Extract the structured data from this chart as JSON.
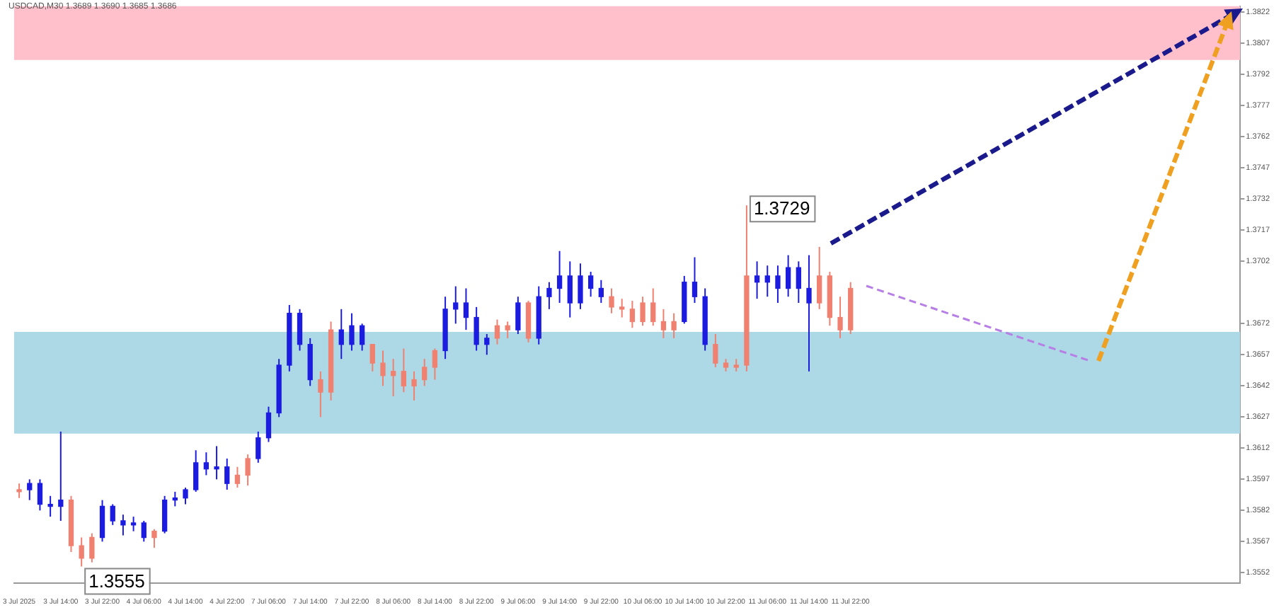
{
  "chart_data": {
    "type": "candlestick",
    "title": "USDCAD,M30  1.3689 1.3690 1.3685 1.3686",
    "categories": [
      "3 Jul 2025",
      null,
      null,
      null,
      "3 Jul 14:00",
      null,
      null,
      null,
      "3 Jul 22:00",
      null,
      null,
      null,
      "4 Jul 06:00",
      null,
      null,
      null,
      "4 Jul 14:00",
      null,
      null,
      null,
      "4 Jul 22:00",
      null,
      null,
      null,
      "7 Jul 06:00",
      null,
      null,
      null,
      "7 Jul 14:00",
      null,
      null,
      null,
      "7 Jul 22:00",
      null,
      null,
      null,
      "8 Jul 06:00",
      null,
      null,
      null,
      "8 Jul 14:00",
      null,
      null,
      null,
      "8 Jul 22:00",
      null,
      null,
      null,
      "9 Jul 06:00",
      null,
      null,
      null,
      "9 Jul 14:00",
      null,
      null,
      null,
      "9 Jul 22:00",
      null,
      null,
      null,
      "10 Jul 06:00",
      null,
      null,
      null,
      "10 Jul 14:00",
      null,
      null,
      null,
      "10 Jul 22:00",
      null,
      null,
      null,
      "11 Jul 06:00",
      null,
      null,
      null,
      "11 Jul 14:00",
      null,
      null,
      null,
      "11 Jul 22:00",
      null,
      null,
      null,
      null,
      null,
      null,
      null,
      null,
      null,
      null,
      null,
      null,
      null,
      null,
      null,
      null,
      null,
      null,
      null,
      null,
      null,
      null,
      null,
      null,
      null,
      null,
      null,
      null,
      null,
      null,
      null,
      null,
      null,
      null,
      null,
      null,
      null
    ],
    "ohlc": [
      [
        1.3592,
        1.3595,
        1.3588,
        1.3591
      ],
      [
        1.3592,
        1.3597,
        1.3587,
        1.3595
      ],
      [
        1.3585,
        1.3597,
        1.3582,
        1.3595
      ],
      [
        1.3584,
        1.3589,
        1.3579,
        1.3585
      ],
      [
        1.3584,
        1.362,
        1.3577,
        1.3587
      ],
      [
        1.3587,
        1.3589,
        1.3562,
        1.3565
      ],
      [
        1.3565,
        1.3569,
        1.3555,
        1.3559
      ],
      [
        1.3569,
        1.3571,
        1.3557,
        1.3559
      ],
      [
        1.3569,
        1.3587,
        1.3567,
        1.3584
      ],
      [
        1.3577,
        1.3585,
        1.3575,
        1.3584
      ],
      [
        1.3575,
        1.358,
        1.357,
        1.3577
      ],
      [
        1.3575,
        1.3579,
        1.3572,
        1.3576
      ],
      [
        1.3569,
        1.3577,
        1.3567,
        1.3576
      ],
      [
        1.3572,
        1.3573,
        1.3564,
        1.3569
      ],
      [
        1.3572,
        1.3589,
        1.3571,
        1.3587
      ],
      [
        1.3587,
        1.3591,
        1.3584,
        1.3588
      ],
      [
        1.3588,
        1.3593,
        1.3585,
        1.3592
      ],
      [
        1.3592,
        1.3611,
        1.3591,
        1.3605
      ],
      [
        1.3602,
        1.361,
        1.3599,
        1.3605
      ],
      [
        1.3602,
        1.3613,
        1.3597,
        1.3603
      ],
      [
        1.3595,
        1.3607,
        1.3592,
        1.3603
      ],
      [
        1.3599,
        1.3603,
        1.3593,
        1.3595
      ],
      [
        1.3607,
        1.3609,
        1.3594,
        1.3599
      ],
      [
        1.3607,
        1.362,
        1.3605,
        1.3617
      ],
      [
        1.3617,
        1.3632,
        1.3615,
        1.3629
      ],
      [
        1.3629,
        1.3655,
        1.3627,
        1.3652
      ],
      [
        1.3652,
        1.3681,
        1.3649,
        1.3677
      ],
      [
        1.3662,
        1.3679,
        1.3659,
        1.3677
      ],
      [
        1.3645,
        1.3665,
        1.3642,
        1.3662
      ],
      [
        1.3645,
        1.3649,
        1.3627,
        1.3639
      ],
      [
        1.3669,
        1.3673,
        1.3635,
        1.3639
      ],
      [
        1.3662,
        1.3679,
        1.3655,
        1.3669
      ],
      [
        1.3662,
        1.3677,
        1.3659,
        1.3671
      ],
      [
        1.3662,
        1.3672,
        1.3659,
        1.3671
      ],
      [
        1.3662,
        1.3662,
        1.3649,
        1.3653
      ],
      [
        1.3653,
        1.3659,
        1.3642,
        1.3647
      ],
      [
        1.3649,
        1.3655,
        1.3637,
        1.3647
      ],
      [
        1.3649,
        1.366,
        1.3639,
        1.3642
      ],
      [
        1.3645,
        1.3649,
        1.3635,
        1.3642
      ],
      [
        1.3651,
        1.3655,
        1.3642,
        1.3645
      ],
      [
        1.3659,
        1.366,
        1.3645,
        1.3651
      ],
      [
        1.3659,
        1.3685,
        1.3655,
        1.3679
      ],
      [
        1.3679,
        1.369,
        1.3672,
        1.3682
      ],
      [
        1.3675,
        1.3689,
        1.3669,
        1.3682
      ],
      [
        1.3662,
        1.368,
        1.3659,
        1.3675
      ],
      [
        1.3662,
        1.3667,
        1.3657,
        1.3665
      ],
      [
        1.3671,
        1.3674,
        1.3662,
        1.3665
      ],
      [
        1.3671,
        1.3673,
        1.3665,
        1.3669
      ],
      [
        1.3669,
        1.3685,
        1.3667,
        1.3682
      ],
      [
        1.3682,
        1.3683,
        1.3663,
        1.3665
      ],
      [
        1.3665,
        1.369,
        1.3662,
        1.3685
      ],
      [
        1.3685,
        1.3692,
        1.3679,
        1.3689
      ],
      [
        1.3689,
        1.3707,
        1.3682,
        1.3695
      ],
      [
        1.3682,
        1.3702,
        1.3675,
        1.3695
      ],
      [
        1.3682,
        1.3701,
        1.3679,
        1.3695
      ],
      [
        1.3689,
        1.3697,
        1.3685,
        1.3695
      ],
      [
        1.3685,
        1.3693,
        1.3682,
        1.3689
      ],
      [
        1.3685,
        1.3689,
        1.3677,
        1.368
      ],
      [
        1.368,
        1.3684,
        1.3675,
        1.3679
      ],
      [
        1.3679,
        1.3683,
        1.367,
        1.3673
      ],
      [
        1.3682,
        1.3685,
        1.3671,
        1.3673
      ],
      [
        1.3682,
        1.3689,
        1.3671,
        1.3673
      ],
      [
        1.3673,
        1.3679,
        1.3665,
        1.3669
      ],
      [
        1.3673,
        1.3677,
        1.3665,
        1.3669
      ],
      [
        1.3673,
        1.3695,
        1.3672,
        1.3692
      ],
      [
        1.3685,
        1.3704,
        1.3682,
        1.3692
      ],
      [
        1.3662,
        1.3689,
        1.3659,
        1.3685
      ],
      [
        1.3662,
        1.3667,
        1.3651,
        1.3653
      ],
      [
        1.3653,
        1.3655,
        1.3649,
        1.3651
      ],
      [
        1.3652,
        1.3655,
        1.3649,
        1.3651
      ],
      [
        1.3695,
        1.3729,
        1.3649,
        1.3652
      ],
      [
        1.3692,
        1.3702,
        1.3684,
        1.3695
      ],
      [
        1.3692,
        1.37,
        1.3685,
        1.3695
      ],
      [
        1.3689,
        1.37,
        1.3682,
        1.3695
      ],
      [
        1.3689,
        1.3705,
        1.3685,
        1.3699
      ],
      [
        1.3689,
        1.3702,
        1.3682,
        1.3699
      ],
      [
        1.3682,
        1.3705,
        1.3649,
        1.3689
      ],
      [
        1.3695,
        1.3709,
        1.3679,
        1.3682
      ],
      [
        1.3695,
        1.3697,
        1.3671,
        1.3675
      ],
      [
        1.3675,
        1.3685,
        1.3665,
        1.3669
      ],
      [
        1.3689,
        1.3692,
        1.3667,
        1.3669
      ],
      null,
      null,
      null,
      null,
      null,
      null,
      null,
      null,
      null,
      null,
      null,
      null,
      null,
      null,
      null,
      null,
      null,
      null,
      null,
      null,
      null,
      null,
      null,
      null,
      null,
      null,
      null,
      null,
      null,
      null,
      null,
      null,
      null,
      null,
      null,
      null,
      null
    ],
    "colors": [
      "#f08070",
      "#1c1ce0",
      "#1c1ce0",
      "#1c1ce0",
      "#1c1ce0",
      "#f08070",
      "#f08070",
      "#f08070",
      "#1c1ce0",
      "#1c1ce0",
      "#1c1ce0",
      "#1c1ce0",
      "#1c1ce0",
      "#f08070",
      "#1c1ce0",
      "#1c1ce0",
      "#1c1ce0",
      "#1c1ce0",
      "#1c1ce0",
      "#1c1ce0",
      "#1c1ce0",
      "#f08070",
      "#f08070",
      "#1c1ce0",
      "#1c1ce0",
      "#1c1ce0",
      "#1c1ce0",
      "#1c1ce0",
      "#1c1ce0",
      "#f08070",
      "#f08070",
      "#1c1ce0",
      "#1c1ce0",
      "#1c1ce0",
      "#f08070",
      "#f08070",
      "#f08070",
      "#f08070",
      "#f08070",
      "#f08070",
      "#f08070",
      "#1c1ce0",
      "#1c1ce0",
      "#1c1ce0",
      "#1c1ce0",
      "#1c1ce0",
      "#f08070",
      "#f08070",
      "#1c1ce0",
      "#f08070",
      "#1c1ce0",
      "#1c1ce0",
      "#1c1ce0",
      "#1c1ce0",
      "#1c1ce0",
      "#1c1ce0",
      "#1c1ce0",
      "#f08070",
      "#f08070",
      "#f08070",
      "#f08070",
      "#f08070",
      "#f08070",
      "#f08070",
      "#1c1ce0",
      "#1c1ce0",
      "#1c1ce0",
      "#f08070",
      "#f08070",
      "#f08070",
      "#f08070",
      "#1c1ce0",
      "#1c1ce0",
      "#1c1ce0",
      "#1c1ce0",
      "#1c1ce0",
      "#1c1ce0",
      "#f08070",
      "#f08070",
      "#f08070",
      "#f08070",
      null,
      null,
      null,
      null,
      null,
      null,
      null,
      null,
      null,
      null,
      null,
      null,
      null,
      null,
      null,
      null,
      null,
      null,
      null,
      null,
      null,
      null,
      null,
      null,
      null,
      null,
      null,
      null,
      null,
      null,
      null,
      null,
      null,
      null,
      null,
      null,
      null
    ],
    "ylim": [
      1.3547,
      1.3825
    ],
    "yticks": [
      1.3822,
      1.3807,
      1.3792,
      1.3777,
      1.3762,
      1.3747,
      1.3732,
      1.3717,
      1.3702,
      1.3672,
      1.3657,
      1.3642,
      1.3627,
      1.3612,
      1.3597,
      1.3582,
      1.3567,
      1.3552
    ],
    "bands": [
      {
        "axis": "y",
        "from": 1.3799,
        "to": 1.3825,
        "color": "#ffc0cb"
      },
      {
        "axis": "y",
        "from": 1.3619,
        "to": 1.3668,
        "color": "#add8e6"
      }
    ],
    "annotations": [
      "1.3729",
      "1.3555"
    ]
  }
}
